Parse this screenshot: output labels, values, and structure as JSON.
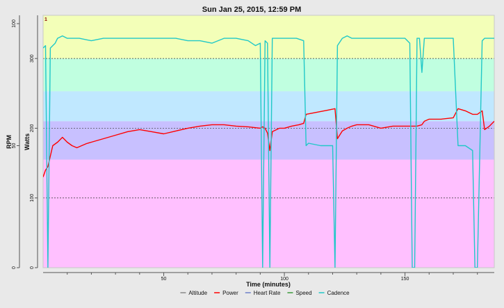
{
  "chart_data": {
    "type": "line",
    "title": "Sun Jan 25, 2015, 12:59 PM",
    "xlabel": "Time (minutes)",
    "ylabel_outer": "RPM",
    "ylabel_inner": "Watts",
    "xlim": [
      0,
      187
    ],
    "x_ticks": [
      50,
      100,
      150
    ],
    "rpm_axis": {
      "ylim": [
        0,
        100
      ],
      "ticks": [
        0,
        50,
        100
      ]
    },
    "watts_axis": {
      "ylim": [
        0,
        350
      ],
      "ticks": [
        0,
        100,
        200,
        300
      ]
    },
    "grid": "dotted horizontal at 100, 200, 300 W",
    "zones_watts": [
      {
        "from": 0,
        "to": 155,
        "color": "#ffc0ff"
      },
      {
        "from": 155,
        "to": 210,
        "color": "#c8c0ff"
      },
      {
        "from": 210,
        "to": 253,
        "color": "#c0e8ff"
      },
      {
        "from": 253,
        "to": 300,
        "color": "#c0ffe0"
      },
      {
        "from": 300,
        "to": 350,
        "color": "#f3ffb8"
      }
    ],
    "series": [
      {
        "name": "Power",
        "color": "#ff0000",
        "axis": "watts",
        "x": [
          0,
          1,
          2,
          3,
          4,
          6,
          8,
          10,
          12,
          14,
          16,
          18,
          20,
          25,
          30,
          35,
          40,
          45,
          50,
          55,
          60,
          65,
          70,
          75,
          80,
          85,
          90,
          91,
          92,
          93,
          94,
          95,
          98,
          100,
          103,
          106,
          108,
          109,
          112,
          115,
          118,
          121,
          122,
          124,
          126,
          128,
          130,
          135,
          140,
          145,
          150,
          155,
          157,
          158,
          160,
          165,
          170,
          172,
          175,
          178,
          180,
          182,
          183,
          185,
          187
        ],
        "values": [
          130,
          140,
          145,
          160,
          175,
          180,
          187,
          180,
          175,
          172,
          175,
          178,
          180,
          185,
          190,
          195,
          198,
          195,
          192,
          196,
          200,
          203,
          205,
          205,
          203,
          202,
          200,
          202,
          200,
          193,
          168,
          195,
          200,
          200,
          203,
          205,
          207,
          220,
          222,
          224,
          226,
          228,
          185,
          196,
          200,
          203,
          205,
          205,
          200,
          203,
          203,
          203,
          205,
          210,
          213,
          213,
          215,
          228,
          225,
          220,
          220,
          225,
          198,
          203,
          210
        ]
      },
      {
        "name": "Cadence",
        "color": "#20c8c8",
        "axis": "rpm",
        "x": [
          0,
          1,
          2,
          3,
          4,
          5,
          6,
          8,
          10,
          15,
          20,
          25,
          30,
          35,
          40,
          45,
          50,
          55,
          60,
          65,
          70,
          75,
          80,
          85,
          88,
          90,
          91,
          92,
          93,
          94,
          95,
          100,
          105,
          108,
          109,
          110,
          115,
          120,
          121,
          122,
          124,
          126,
          128,
          130,
          135,
          140,
          145,
          150,
          152,
          153,
          154,
          155,
          156,
          157,
          158,
          160,
          165,
          170,
          172,
          175,
          178,
          179,
          180,
          182,
          183,
          185,
          187
        ],
        "values": [
          90,
          91,
          0,
          90,
          91,
          92,
          94,
          95,
          94,
          94,
          93,
          94,
          94,
          94,
          94,
          94,
          94,
          94,
          93,
          93,
          92,
          94,
          94,
          93,
          91,
          92,
          0,
          93,
          92,
          0,
          94,
          94,
          94,
          93,
          50,
          51,
          50,
          50,
          0,
          91,
          94,
          95,
          94,
          94,
          94,
          94,
          94,
          94,
          92,
          0,
          0,
          94,
          94,
          80,
          94,
          94,
          94,
          94,
          50,
          50,
          48,
          0,
          0,
          93,
          94,
          94,
          94
        ]
      }
    ]
  },
  "legend": {
    "items": [
      {
        "label": "Altitude",
        "color": "#888888"
      },
      {
        "label": "Power",
        "color": "#ff0000"
      },
      {
        "label": "Heart Rate",
        "color": "#6d7fc9"
      },
      {
        "label": "Speed",
        "color": "#3a9b3a"
      },
      {
        "label": "Cadence",
        "color": "#20c8c8"
      }
    ]
  },
  "marker": "1"
}
